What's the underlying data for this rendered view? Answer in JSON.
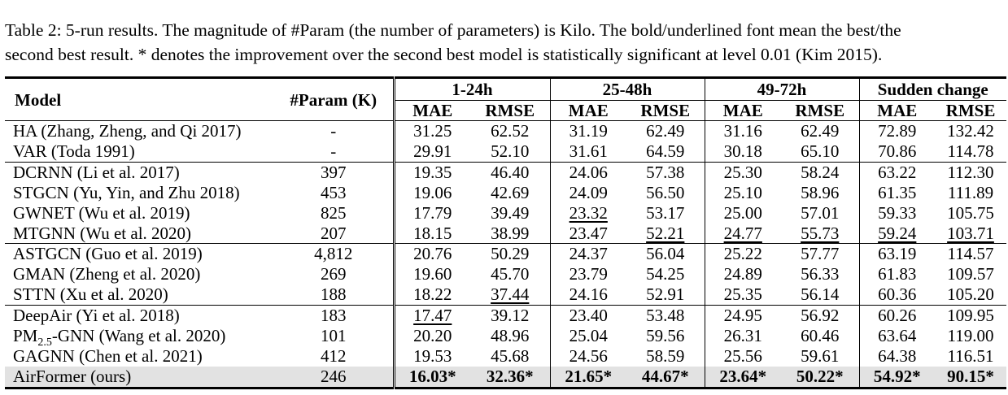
{
  "caption": {
    "line1": "Table 2: 5-run results. The magnitude of #Param (the number of parameters) is Kilo. The bold/underlined font mean the best/the",
    "line2": "second best result. * denotes the improvement over the second best model is statistically significant at level 0.01 (Kim 2015)."
  },
  "table": {
    "header": {
      "model": "Model",
      "param": "#Param (K)",
      "groups": [
        "1-24h",
        "25-48h",
        "49-72h",
        "Sudden change"
      ],
      "metrics": [
        "MAE",
        "RMSE",
        "MAE",
        "RMSE",
        "MAE",
        "RMSE",
        "MAE",
        "RMSE"
      ]
    },
    "rows": [
      {
        "model": "HA (Zhang, Zheng, and Qi 2017)",
        "param": "-",
        "values": [
          "31.25",
          "62.52",
          "31.19",
          "62.49",
          "31.16",
          "62.49",
          "72.89",
          "132.42"
        ],
        "group_start": true
      },
      {
        "model": "VAR (Toda 1991)",
        "param": "-",
        "values": [
          "29.91",
          "52.10",
          "31.61",
          "64.59",
          "30.18",
          "65.10",
          "70.86",
          "114.78"
        ]
      },
      {
        "model": "DCRNN (Li et al. 2017)",
        "param": "397",
        "values": [
          "19.35",
          "46.40",
          "24.06",
          "57.38",
          "25.30",
          "58.24",
          "63.22",
          "112.30"
        ],
        "group_start": true
      },
      {
        "model": "STGCN (Yu, Yin, and Zhu 2018)",
        "param": "453",
        "values": [
          "19.06",
          "42.69",
          "24.09",
          "56.50",
          "25.10",
          "58.96",
          "61.35",
          "111.89"
        ]
      },
      {
        "model": "GWNET (Wu et al. 2019)",
        "param": "825",
        "values": [
          "17.79",
          "39.49",
          "23.32",
          "53.17",
          "25.00",
          "57.01",
          "59.33",
          "105.75"
        ],
        "underline": [
          2
        ]
      },
      {
        "model": "MTGNN (Wu et al. 2020)",
        "param": "207",
        "values": [
          "18.15",
          "38.99",
          "23.47",
          "52.21",
          "24.77",
          "55.73",
          "59.24",
          "103.71"
        ],
        "underline": [
          3,
          4,
          5,
          6,
          7
        ]
      },
      {
        "model": "ASTGCN (Guo et al. 2019)",
        "param": "4,812",
        "values": [
          "20.76",
          "50.29",
          "24.37",
          "56.04",
          "25.22",
          "57.77",
          "63.19",
          "114.57"
        ],
        "group_start": true
      },
      {
        "model": "GMAN (Zheng et al. 2020)",
        "param": "269",
        "values": [
          "19.60",
          "45.70",
          "23.79",
          "54.25",
          "24.89",
          "56.33",
          "61.83",
          "109.57"
        ]
      },
      {
        "model": "STTN (Xu et al. 2020)",
        "param": "188",
        "values": [
          "18.22",
          "37.44",
          "24.16",
          "52.91",
          "25.35",
          "56.14",
          "60.36",
          "105.20"
        ],
        "underline": [
          1
        ]
      },
      {
        "model": "DeepAir (Yi et al. 2018)",
        "param": "183",
        "values": [
          "17.47",
          "39.12",
          "23.40",
          "53.48",
          "24.95",
          "56.92",
          "60.26",
          "109.95"
        ],
        "underline": [
          0
        ],
        "group_start": true
      },
      {
        "model_pre": "PM",
        "model_sub": "2.5",
        "model_post": "-GNN (Wang et al. 2020)",
        "param": "101",
        "values": [
          "20.20",
          "48.96",
          "25.04",
          "59.56",
          "26.31",
          "60.46",
          "63.64",
          "119.00"
        ]
      },
      {
        "model": "GAGNN (Chen et al. 2021)",
        "param": "412",
        "values": [
          "19.53",
          "45.68",
          "24.56",
          "58.59",
          "25.56",
          "59.61",
          "64.38",
          "116.51"
        ]
      },
      {
        "model": "AirFormer (ours)",
        "param": "246",
        "values": [
          "16.03*",
          "32.36*",
          "21.65*",
          "44.67*",
          "23.64*",
          "50.22*",
          "54.92*",
          "90.15*"
        ],
        "bold_all": true,
        "highlight": true,
        "last": true
      }
    ]
  }
}
